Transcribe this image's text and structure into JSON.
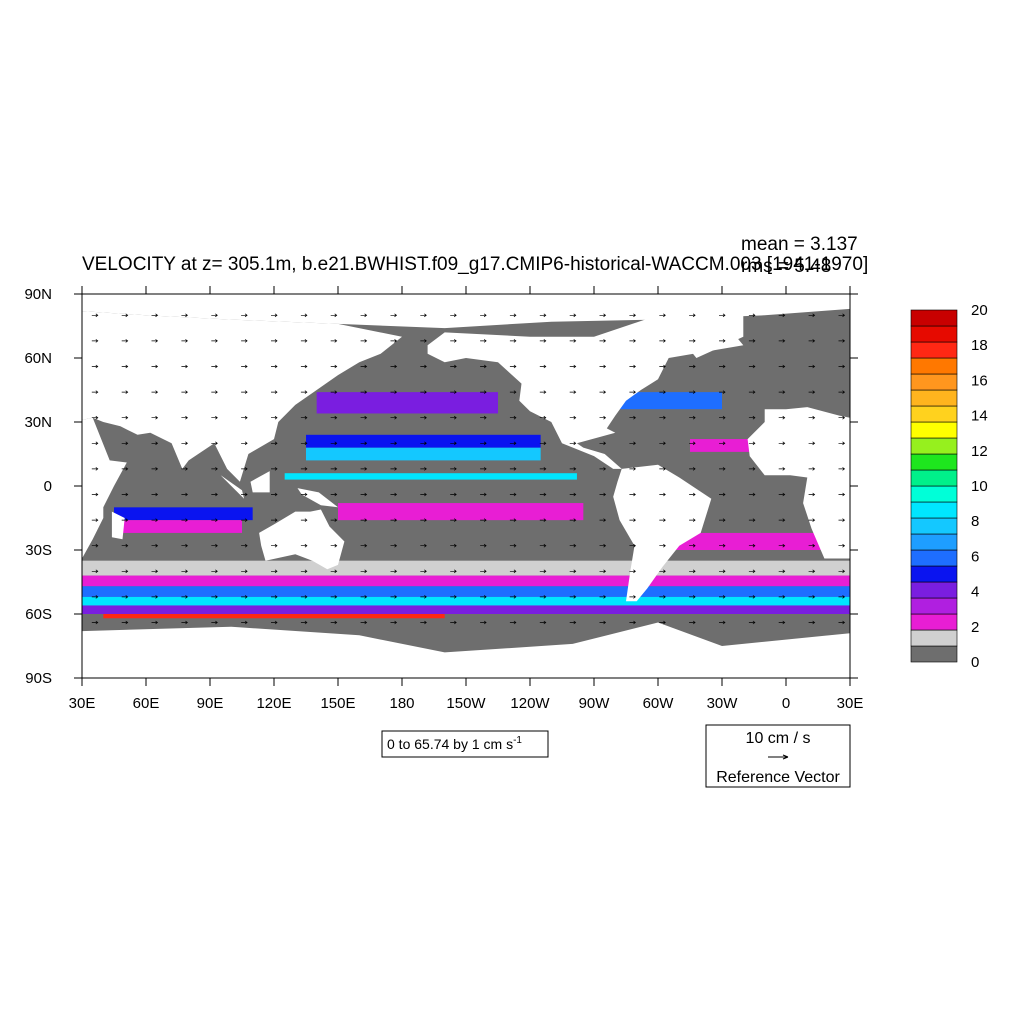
{
  "figure": {
    "title": "VELOCITY at z= 305.1m, b.e21.BWHIST.f09_g17.CMIP6-historical-WACCM.003 [1941-1970]",
    "mean_label": "mean = 3.137",
    "rms_label": "rms = 5.48",
    "range_label": "0 to 65.74 by 1 cm s",
    "range_exponent": "-1",
    "ref_vector": {
      "magnitude_label": "10 cm / s",
      "caption": "Reference Vector"
    }
  },
  "chart_data": {
    "type": "heatmap",
    "variable": "VELOCITY",
    "depth": "305.1m",
    "case": "b.e21.BWHIST.f09_g17.CMIP6-historical-WACCM.003",
    "period": "[1941-1970]",
    "stats": {
      "mean": 3.137,
      "rms": 5.48
    },
    "range": {
      "min": 0,
      "max": 65.74,
      "interval": 1,
      "units": "cm s-1"
    },
    "x_ticks": [
      "30E",
      "60E",
      "90E",
      "120E",
      "150E",
      "180",
      "150W",
      "120W",
      "90W",
      "60W",
      "30W",
      "0",
      "30E"
    ],
    "y_ticks": [
      "90N",
      "60N",
      "30N",
      "0",
      "30S",
      "60S",
      "90S"
    ],
    "xlim": [
      30,
      390
    ],
    "ylim": [
      -90,
      90
    ],
    "colorbar": {
      "labels": [
        "0",
        "2",
        "4",
        "6",
        "8",
        "10",
        "12",
        "14",
        "16",
        "18",
        "20"
      ],
      "colors": [
        "#6e6e6e",
        "#d0d0d0",
        "#e81ed4",
        "#b01fe0",
        "#7a1ee0",
        "#0a14f0",
        "#1e6eff",
        "#1e9eff",
        "#14c8ff",
        "#00e6ff",
        "#00ffd8",
        "#00f08a",
        "#1ee61e",
        "#96f01e",
        "#ffff00",
        "#ffd21e",
        "#ffb41e",
        "#ff961e",
        "#ff7800",
        "#ff2814",
        "#e60a00",
        "#c80000"
      ]
    },
    "land_color": "#ffffff",
    "grid": false
  }
}
